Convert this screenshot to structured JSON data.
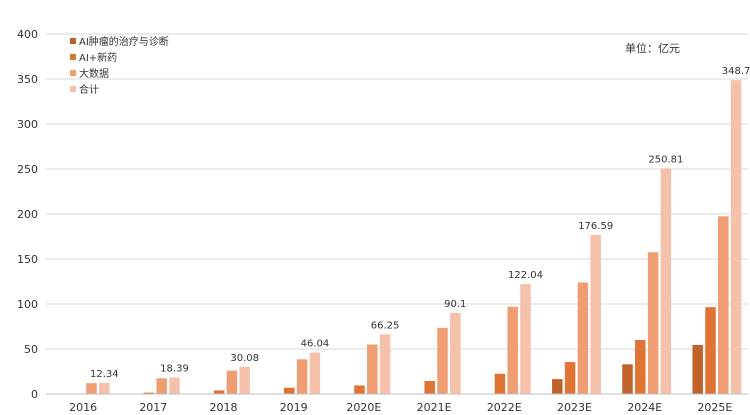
{
  "chart_data": {
    "type": "bar",
    "categories": [
      "2016",
      "2017",
      "2018",
      "2019",
      "2020E",
      "2021E",
      "2022E",
      "2023E",
      "2024E",
      "2025E"
    ],
    "series": [
      {
        "name": "AI肿瘤的治疗与诊断",
        "color": "#c0622a",
        "values": [
          0,
          0,
          0,
          0,
          0,
          0,
          0,
          16.5,
          33,
          54.5
        ]
      },
      {
        "name": "AI+新药",
        "color": "#e07434",
        "values": [
          0.5,
          1.5,
          4,
          7,
          9.5,
          14.5,
          22.5,
          35.5,
          60,
          96.5
        ]
      },
      {
        "name": "大数据",
        "color": "#ef9e74",
        "values": [
          12,
          17.5,
          26,
          38.5,
          55,
          73.5,
          97,
          124,
          157.5,
          197.5
        ]
      },
      {
        "name": "合计",
        "color": "#f5c1ab",
        "values": [
          12.34,
          18.39,
          30.08,
          46.04,
          66.25,
          90.1,
          122.04,
          176.59,
          250.81,
          348.7
        ]
      }
    ],
    "total_labels": [
      "12.34",
      "18.39",
      "30.08",
      "46.04",
      "66.25",
      "90.1",
      "122.04",
      "176.59",
      "250.81",
      "348.7"
    ],
    "ylim": [
      0,
      400
    ],
    "yticks": [
      0,
      50,
      100,
      150,
      200,
      250,
      300,
      350,
      400
    ],
    "unit": "单位：亿元",
    "grid": true,
    "legend_position": "top-left",
    "title": "",
    "xlabel": "",
    "ylabel": ""
  }
}
